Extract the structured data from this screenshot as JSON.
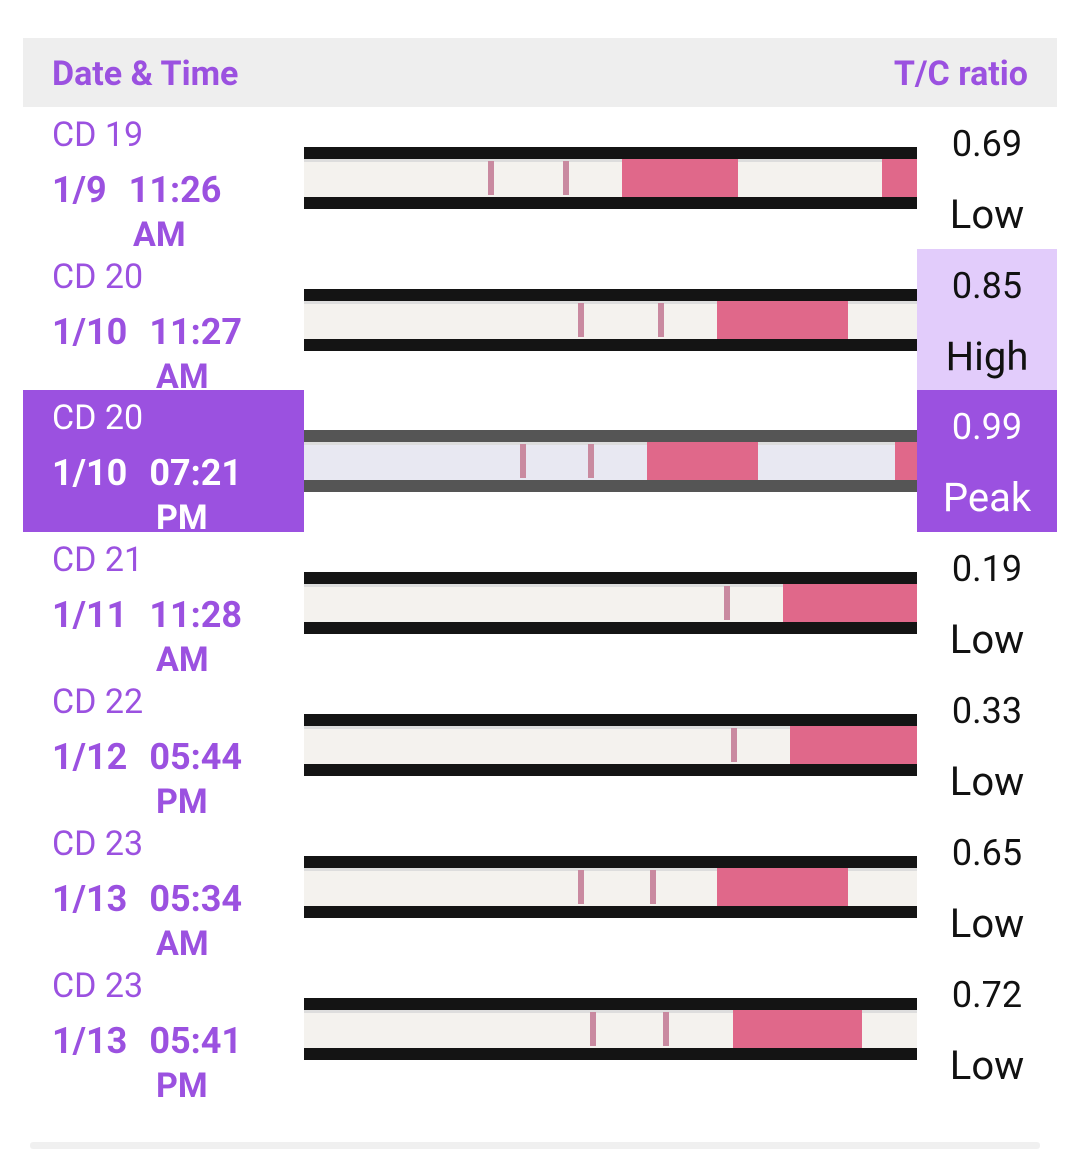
{
  "header": {
    "date_time": "Date & Time",
    "ratio": "T/C ratio"
  },
  "rows": [
    {
      "cycle_day": "CD 19",
      "date": "1/9",
      "time": "11:26",
      "period": "AM",
      "ratio": 0.69,
      "level": "Low"
    },
    {
      "cycle_day": "CD 20",
      "date": "1/10",
      "time": "11:27",
      "period": "AM",
      "ratio": 0.85,
      "level": "High"
    },
    {
      "cycle_day": "CD 20",
      "date": "1/10",
      "time": "07:21",
      "period": "PM",
      "ratio": 0.99,
      "level": "Peak"
    },
    {
      "cycle_day": "CD 21",
      "date": "1/11",
      "time": "11:28",
      "period": "AM",
      "ratio": 0.19,
      "level": "Low"
    },
    {
      "cycle_day": "CD 22",
      "date": "1/12",
      "time": "05:44",
      "period": "PM",
      "ratio": 0.33,
      "level": "Low"
    },
    {
      "cycle_day": "CD 23",
      "date": "1/13",
      "time": "05:34",
      "period": "AM",
      "ratio": 0.65,
      "level": "Low"
    },
    {
      "cycle_day": "CD 23",
      "date": "1/13",
      "time": "05:41",
      "period": "PM",
      "ratio": 0.72,
      "level": "Low"
    }
  ]
}
